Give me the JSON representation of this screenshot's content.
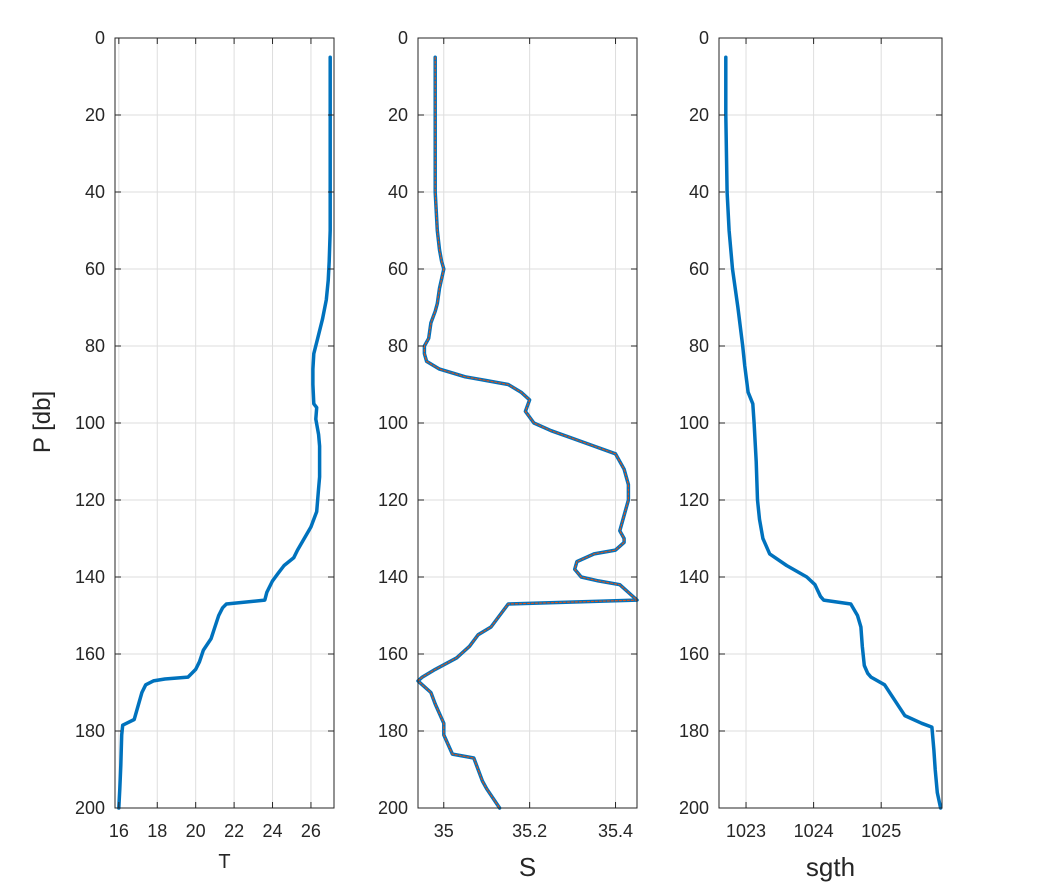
{
  "figure": {
    "ylabel": "P [db]"
  },
  "chart_data": [
    {
      "type": "line",
      "xlabel": "T",
      "ylabel": "P [db]",
      "xlim": [
        15.8,
        27.2
      ],
      "ylim": [
        200,
        0
      ],
      "y_reversed": true,
      "grid": true,
      "xticks": [
        16,
        18,
        20,
        22,
        24,
        26
      ],
      "xtick_labels": [
        "16",
        "18",
        "20",
        "22",
        "24",
        "26"
      ],
      "yticks": [
        0,
        20,
        40,
        60,
        80,
        100,
        120,
        140,
        160,
        180,
        200
      ],
      "ytick_labels": [
        "0",
        "20",
        "40",
        "60",
        "80",
        "100",
        "120",
        "140",
        "160",
        "180",
        "200"
      ],
      "series": [
        {
          "color": "#0072BD",
          "x": [
            27.0,
            27.0,
            27.0,
            27.0,
            26.95,
            26.9,
            26.8,
            26.6,
            26.35,
            26.15,
            26.1,
            26.1,
            26.15,
            26.3,
            26.25,
            26.4,
            26.45,
            26.45,
            26.45,
            26.4,
            26.3,
            26.0,
            25.3,
            25.1,
            24.6,
            24.3,
            24.0,
            23.7,
            23.6,
            21.6,
            21.4,
            21.2,
            21.0,
            20.8,
            20.4,
            20.2,
            20.0,
            19.6,
            18.4,
            17.8,
            17.4,
            17.2,
            16.8,
            16.2,
            16.15,
            16.1,
            16.05,
            16.0
          ],
          "y": [
            5,
            20,
            40,
            50,
            58,
            63,
            68,
            73,
            78,
            82,
            86,
            90,
            95,
            96,
            99,
            103,
            106,
            110,
            114,
            117,
            123,
            127,
            133,
            135,
            137,
            139,
            141,
            144,
            146,
            147,
            148,
            150,
            153,
            156,
            159,
            162,
            164,
            166,
            166.5,
            167,
            168,
            170,
            177,
            178.5,
            181,
            189,
            195,
            200
          ]
        }
      ]
    },
    {
      "type": "line",
      "xlabel": "S",
      "ylabel": "",
      "xlim": [
        34.94,
        35.45
      ],
      "ylim": [
        200,
        0
      ],
      "y_reversed": true,
      "grid": true,
      "xticks": [
        35.0,
        35.2,
        35.4
      ],
      "xtick_labels": [
        "35",
        "35.2",
        "35.4"
      ],
      "yticks": [
        0,
        20,
        40,
        60,
        80,
        100,
        120,
        140,
        160,
        180,
        200
      ],
      "ytick_labels": [
        "0",
        "20",
        "40",
        "60",
        "80",
        "100",
        "120",
        "140",
        "160",
        "180",
        "200"
      ],
      "series": [
        {
          "color": "#0072BD",
          "x": [
            34.98,
            34.98,
            34.98,
            34.985,
            34.99,
            34.995,
            35.0,
            34.99,
            34.985,
            34.98,
            34.97,
            34.965,
            34.955,
            34.955,
            34.96,
            34.99,
            35.05,
            35.1,
            35.15,
            35.18,
            35.2,
            35.19,
            35.21,
            35.25,
            35.3,
            35.35,
            35.4,
            35.42,
            35.43,
            35.43,
            35.42,
            35.41,
            35.42,
            35.42,
            35.4,
            35.35,
            35.31,
            35.305,
            35.32,
            35.36,
            35.41,
            35.45,
            35.15,
            35.13,
            35.11,
            35.08,
            35.06,
            35.03,
            34.98,
            34.95,
            34.94,
            34.95,
            34.97,
            34.98,
            35.0,
            35.0,
            35.02,
            35.07,
            35.08,
            35.09,
            35.1,
            35.13
          ],
          "y": [
            5,
            20,
            40,
            50,
            55,
            58,
            60,
            65,
            69,
            71,
            74,
            78,
            80,
            82,
            84,
            86,
            88,
            89,
            90,
            92,
            94,
            97,
            100,
            102,
            104,
            106,
            108,
            112,
            116,
            120,
            124,
            128,
            130,
            131,
            133,
            134,
            136,
            138,
            140,
            141,
            142,
            146,
            147,
            150,
            153,
            155,
            158,
            161,
            164,
            166,
            167,
            168,
            170,
            173,
            178,
            181,
            186,
            187,
            190,
            193,
            195,
            200
          ]
        },
        {
          "color": "#D95319",
          "x": [
            34.98,
            34.98,
            34.98,
            34.985,
            34.99,
            34.995,
            35.0,
            34.99,
            34.985,
            34.98,
            34.97,
            34.965,
            34.955,
            34.955,
            34.96,
            34.99,
            35.05,
            35.1,
            35.15,
            35.18,
            35.2,
            35.19,
            35.21,
            35.25,
            35.3,
            35.35,
            35.4,
            35.42,
            35.43,
            35.43,
            35.42,
            35.41,
            35.42,
            35.42,
            35.4,
            35.35,
            35.31,
            35.305,
            35.32,
            35.36,
            35.41,
            35.45,
            35.15,
            35.13,
            35.11,
            35.08,
            35.06,
            35.03,
            34.98,
            34.95,
            34.94,
            34.95,
            34.97,
            34.98,
            35.0,
            35.0,
            35.02,
            35.07,
            35.08,
            35.09,
            35.1,
            35.13
          ],
          "y": [
            5,
            20,
            40,
            50,
            55,
            58,
            60,
            65,
            69,
            71,
            74,
            78,
            80,
            82,
            84,
            86,
            88,
            89,
            90,
            92,
            94,
            97,
            100,
            102,
            104,
            106,
            108,
            112,
            116,
            120,
            124,
            128,
            130,
            131,
            133,
            134,
            136,
            138,
            140,
            141,
            142,
            146,
            147,
            150,
            153,
            155,
            158,
            161,
            164,
            166,
            167,
            168,
            170,
            173,
            178,
            181,
            186,
            187,
            190,
            193,
            195,
            200
          ]
        }
      ]
    },
    {
      "type": "line",
      "xlabel": "sgth",
      "ylabel": "",
      "xlim": [
        1022.6,
        1025.9
      ],
      "ylim": [
        200,
        0
      ],
      "y_reversed": true,
      "grid": true,
      "xticks": [
        1023,
        1024,
        1025
      ],
      "xtick_labels": [
        "1023",
        "1024",
        "1025"
      ],
      "yticks": [
        0,
        20,
        40,
        60,
        80,
        100,
        120,
        140,
        160,
        180,
        200
      ],
      "ytick_labels": [
        "0",
        "20",
        "40",
        "60",
        "80",
        "100",
        "120",
        "140",
        "160",
        "180",
        "200"
      ],
      "series": [
        {
          "color": "#0072BD",
          "x": [
            1022.7,
            1022.7,
            1022.72,
            1022.75,
            1022.8,
            1022.88,
            1022.95,
            1022.98,
            1023.03,
            1023.1,
            1023.12,
            1023.15,
            1023.17,
            1023.2,
            1023.25,
            1023.35,
            1023.6,
            1023.9,
            1024.02,
            1024.1,
            1024.15,
            1024.55,
            1024.65,
            1024.7,
            1024.72,
            1024.75,
            1024.8,
            1024.85,
            1025.05,
            1025.2,
            1025.35,
            1025.6,
            1025.75,
            1025.78,
            1025.8,
            1025.83,
            1025.88
          ],
          "y": [
            5,
            20,
            40,
            50,
            60,
            70,
            80,
            85,
            92,
            95,
            100,
            110,
            120,
            125,
            130,
            134,
            137,
            140,
            142,
            145,
            146,
            147,
            150,
            153,
            158,
            163,
            165,
            166,
            168,
            172,
            176,
            178,
            179,
            185,
            190,
            196,
            200
          ]
        }
      ]
    }
  ]
}
